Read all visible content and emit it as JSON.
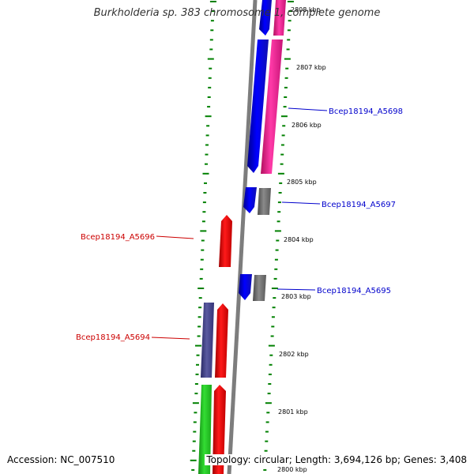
{
  "title": "Burkholderia sp. 383 chromosome 1, complete genome",
  "footer": {
    "accession": "Accession: NC_007510",
    "topology": "Topology: circular; Length: 3,694,126 bp; Genes: 3,408"
  },
  "colors": {
    "backbone": "#7d7d7d",
    "tick": "#008000",
    "forward_label": "#0000cc",
    "reverse_label": "#cc0000",
    "blue": "#0000ff",
    "pink": "#ff1f9a",
    "gray": "#707070",
    "red": "#ff0000",
    "navy": "#4a4a8c",
    "green": "#22cc22"
  },
  "scale_labels": [
    "2808 kbp",
    "2807 kbp",
    "2806 kbp",
    "2805 kbp",
    "2804 kbp",
    "2803 kbp",
    "2802 kbp",
    "2801 kbp",
    "2800 kbp"
  ],
  "gene_labels": {
    "forward": [
      "Bcep18194_A5698",
      "Bcep18194_A5697",
      "Bcep18194_A5695"
    ],
    "reverse": [
      "Bcep18194_A5696",
      "Bcep18194_A5694"
    ]
  }
}
